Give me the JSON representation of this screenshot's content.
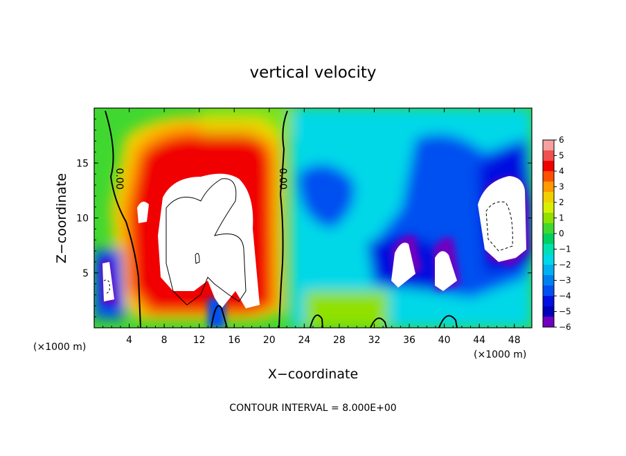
{
  "chart_data": {
    "type": "heatmap",
    "title": "vertical velocity",
    "xlabel": "X−coordinate",
    "ylabel": "Z−coordinate",
    "x_unit": "(×1000 m)",
    "z_unit": "(×1000 m)",
    "xlim": [
      0,
      50
    ],
    "ylim": [
      0,
      20
    ],
    "x_ticks": [
      "4",
      "8",
      "12",
      "16",
      "20",
      "24",
      "28",
      "32",
      "36",
      "40",
      "44",
      "48"
    ],
    "y_ticks": [
      "5",
      "10",
      "15"
    ],
    "colorbar": {
      "range": [
        -6,
        6
      ],
      "ticks": [
        "6",
        "5",
        "4",
        "3",
        "2",
        "1",
        "0",
        "−1",
        "−2",
        "−3",
        "−4",
        "−5",
        "−6"
      ],
      "colors": [
        "#f7a0a0",
        "#f05050",
        "#f00000",
        "#ff5000",
        "#ff9a00",
        "#f0d000",
        "#d8f000",
        "#90e000",
        "#40d830",
        "#00d060",
        "#00e0b0",
        "#00d8e8",
        "#00b0f0",
        "#0080f0",
        "#0050f0",
        "#0010e0",
        "#0000b8",
        "#7000c0"
      ]
    },
    "contour_labels": [
      "0.00",
      "0.00"
    ],
    "contour_interval_text": "CONTOUR INTERVAL = 8.000E+00",
    "grid": false,
    "legend": "right"
  }
}
